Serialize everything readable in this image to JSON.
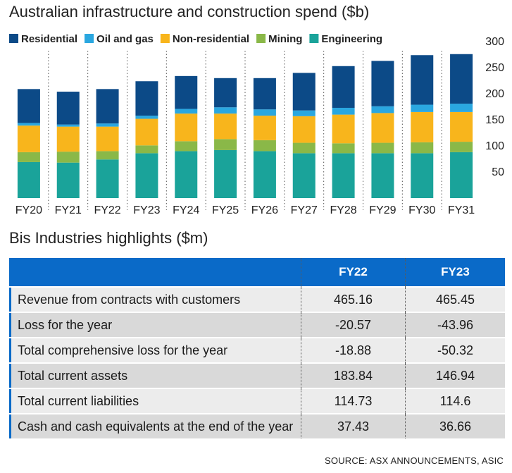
{
  "chart_data": {
    "type": "bar",
    "stacked": true,
    "title": "Australian infrastructure and construction spend ($b)",
    "categories": [
      "FY20",
      "FY21",
      "FY22",
      "FY23",
      "FY24",
      "FY25",
      "FY26",
      "FY27",
      "FY28",
      "FY29",
      "FY30",
      "FY31"
    ],
    "series": [
      {
        "name": "Engineering",
        "color": "#1aa39a",
        "values": [
          69,
          68,
          74,
          86,
          90,
          92,
          90,
          86,
          86,
          86,
          86,
          88
        ]
      },
      {
        "name": "Mining",
        "color": "#8ab848",
        "values": [
          19,
          21,
          16,
          15,
          19,
          21,
          21,
          20,
          19,
          20,
          21,
          20
        ]
      },
      {
        "name": "Non-residential",
        "color": "#f8b51c",
        "values": [
          51,
          48,
          47,
          51,
          53,
          49,
          47,
          51,
          55,
          57,
          58,
          57
        ]
      },
      {
        "name": "Oil and gas",
        "color": "#2aa7e0",
        "values": [
          5,
          4,
          6,
          6,
          9,
          12,
          12,
          11,
          13,
          13,
          14,
          16
        ]
      },
      {
        "name": "Residential",
        "color": "#0c4a87",
        "values": [
          65,
          63,
          66,
          66,
          63,
          56,
          60,
          72,
          80,
          87,
          95,
          95
        ]
      }
    ],
    "legend_order": [
      "Residential",
      "Oil and gas",
      "Non-residential",
      "Mining",
      "Engineering"
    ],
    "legend_position": "top",
    "ylim": [
      0,
      300
    ],
    "yticks": [
      50,
      100,
      150,
      200,
      250,
      300
    ],
    "y_axis_side": "right",
    "grid": "dotted-vertical-separators"
  },
  "table": {
    "title": "Bis Industries highlights ($m)",
    "columns": [
      "",
      "FY22",
      "FY23"
    ],
    "rows": [
      {
        "label": "Revenue from contracts with customers",
        "fy22": "465.16",
        "fy23": "465.45"
      },
      {
        "label": "Loss for the year",
        "fy22": "-20.57",
        "fy23": "-43.96"
      },
      {
        "label": "Total comprehensive loss for the year",
        "fy22": "-18.88",
        "fy23": "-50.32"
      },
      {
        "label": "Total current assets",
        "fy22": "183.84",
        "fy23": "146.94"
      },
      {
        "label": "Total current liabilities",
        "fy22": "114.73",
        "fy23": "114.6"
      },
      {
        "label": "Cash and cash equivalents at the end of the year",
        "fy22": "37.43",
        "fy23": "36.66"
      }
    ],
    "header_color": "#0a6ac8"
  },
  "source": "SOURCE: ASX ANNOUNCEMENTS, ASIC"
}
